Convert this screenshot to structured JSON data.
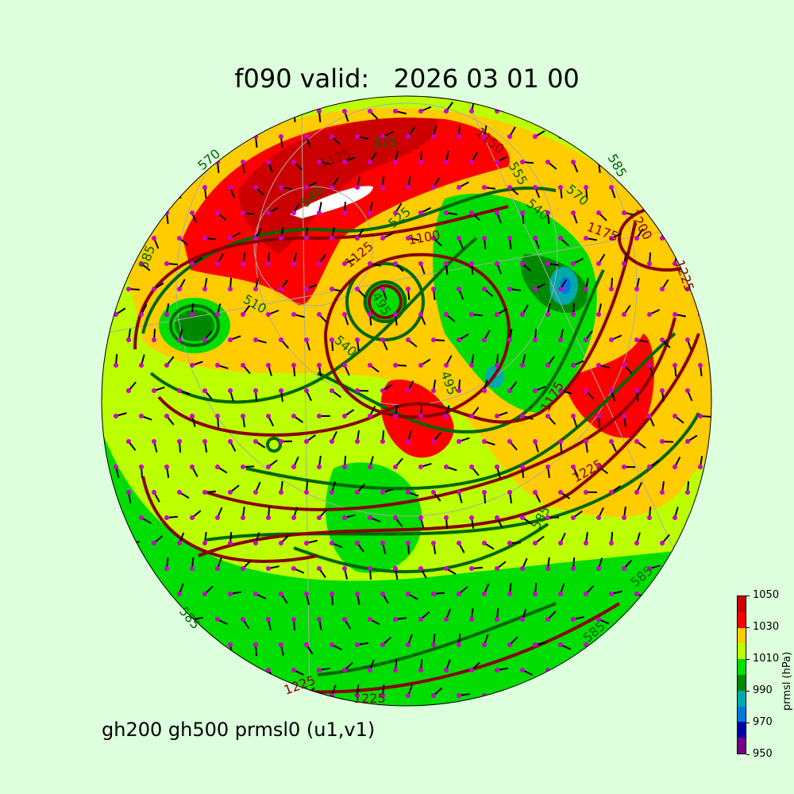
{
  "title": "f090 valid:   2026 03 01 00",
  "subtitle": "gh200 gh500 prmsl0 (u1,v1)",
  "colorbar": {
    "label": "prmsl (hPa)",
    "ticks": [
      "950",
      "970",
      "990",
      "1010",
      "1030",
      "1050"
    ],
    "levels": [
      950,
      960,
      970,
      980,
      990,
      1000,
      1010,
      1020,
      1030,
      1040,
      1050
    ],
    "colors": [
      "#770088",
      "#0000aa",
      "#0077dd",
      "#00aaaa",
      "#008800",
      "#00dd00",
      "#bbff00",
      "#ffcc00",
      "#ff0000",
      "#cc0000"
    ]
  },
  "contour_colors": {
    "gh500": "#006600",
    "gh200": "#880000",
    "wind_barb": "#000000",
    "wind_dot": "#cc00cc"
  },
  "contour_labels": [
    {
      "text": "525",
      "series": "gh500"
    },
    {
      "text": "1125",
      "series": "gh200"
    },
    {
      "text": "540",
      "series": "gh500"
    },
    {
      "text": "525",
      "series": "gh500"
    },
    {
      "text": "1125",
      "series": "gh200"
    },
    {
      "text": "1100",
      "series": "gh200"
    },
    {
      "text": "495",
      "series": "gh500"
    },
    {
      "text": "510",
      "series": "gh500"
    },
    {
      "text": "495",
      "series": "gh500"
    },
    {
      "text": "1150",
      "series": "gh200"
    },
    {
      "text": "555",
      "series": "gh500"
    },
    {
      "text": "540",
      "series": "gh500"
    },
    {
      "text": "570",
      "series": "gh500"
    },
    {
      "text": "1175",
      "series": "gh200"
    },
    {
      "text": "1200",
      "series": "gh200"
    },
    {
      "text": "1225",
      "series": "gh200"
    },
    {
      "text": "1175",
      "series": "gh200"
    },
    {
      "text": "585",
      "series": "gh500"
    },
    {
      "text": "1225",
      "series": "gh200"
    },
    {
      "text": "585",
      "series": "gh500"
    },
    {
      "text": "585",
      "series": "gh500"
    },
    {
      "text": "1225",
      "series": "gh200"
    },
    {
      "text": "1225",
      "series": "gh200"
    },
    {
      "text": "570",
      "series": "gh500"
    },
    {
      "text": "585",
      "series": "gh500"
    },
    {
      "text": "540",
      "series": "gh500"
    },
    {
      "text": "585",
      "series": "gh500"
    },
    {
      "text": "585",
      "series": "gh500"
    }
  ]
}
